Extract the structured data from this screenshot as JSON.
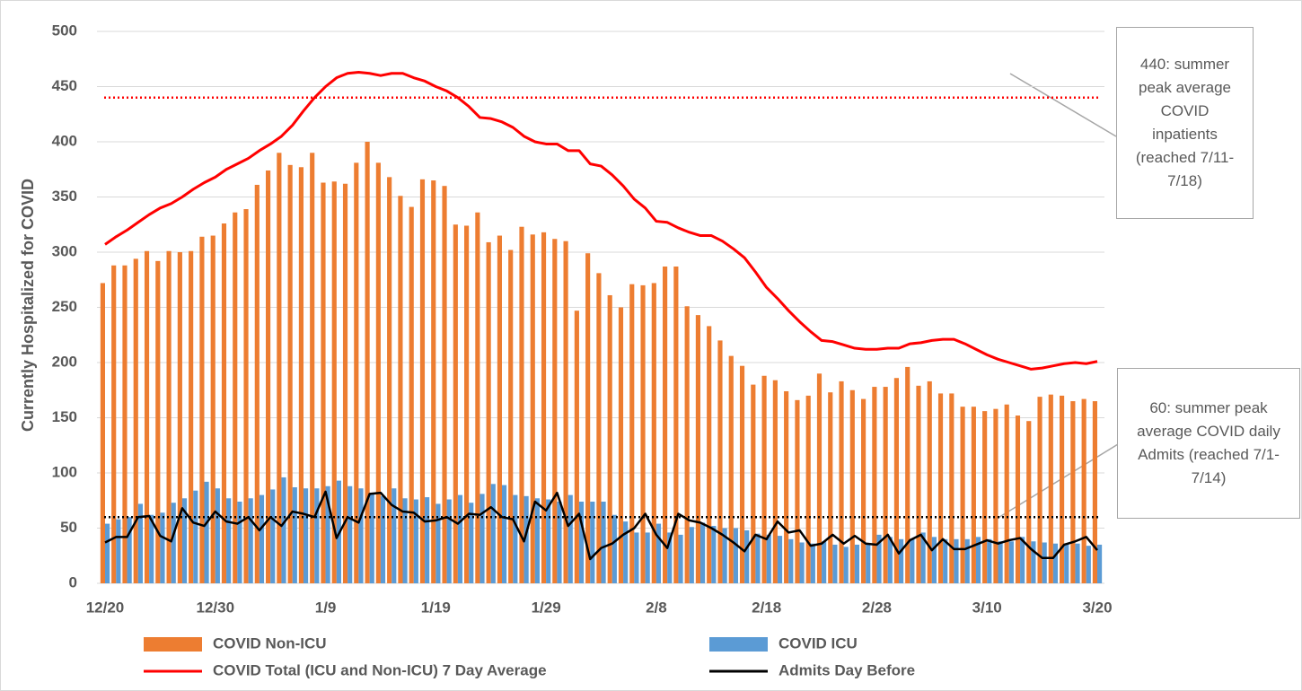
{
  "chart_data": {
    "type": "bar",
    "y_label": "Currently Hospitalized for COVID",
    "categories": [
      "12/20",
      null,
      null,
      null,
      null,
      null,
      null,
      null,
      null,
      null,
      "12/30",
      null,
      null,
      null,
      null,
      null,
      null,
      null,
      null,
      null,
      "1/9",
      null,
      null,
      null,
      null,
      null,
      null,
      null,
      null,
      null,
      "1/19",
      null,
      null,
      null,
      null,
      null,
      null,
      null,
      null,
      null,
      "1/29",
      null,
      null,
      null,
      null,
      null,
      null,
      null,
      null,
      null,
      "2/8",
      null,
      null,
      null,
      null,
      null,
      null,
      null,
      null,
      null,
      "2/18",
      null,
      null,
      null,
      null,
      null,
      null,
      null,
      null,
      null,
      "2/28",
      null,
      null,
      null,
      null,
      null,
      null,
      null,
      null,
      null,
      "3/10",
      null,
      null,
      null,
      null,
      null,
      null,
      null,
      null,
      null,
      "3/20"
    ],
    "series": [
      {
        "name": "COVID Non-ICU",
        "type": "bar",
        "color": "#ed7d31",
        "values": [
          272,
          288,
          288,
          294,
          301,
          292,
          301,
          300,
          301,
          314,
          315,
          326,
          336,
          339,
          361,
          374,
          390,
          379,
          377,
          390,
          363,
          364,
          362,
          381,
          400,
          381,
          368,
          351,
          341,
          366,
          365,
          360,
          325,
          324,
          336,
          309,
          315,
          302,
          323,
          316,
          318,
          312,
          310,
          247,
          299,
          281,
          261,
          250,
          271,
          270,
          272,
          287,
          287,
          251,
          243,
          233,
          220,
          206,
          197,
          180,
          188,
          184,
          174,
          166,
          170,
          190,
          173,
          183,
          175,
          167,
          178,
          178,
          186,
          196,
          179,
          183,
          172,
          172,
          160,
          160,
          156,
          158,
          162,
          152,
          147,
          169,
          171,
          170,
          165,
          167,
          165
        ]
      },
      {
        "name": "COVID ICU",
        "type": "bar",
        "color": "#5b9bd5",
        "values": [
          54,
          58,
          60,
          72,
          62,
          64,
          73,
          77,
          84,
          92,
          86,
          77,
          74,
          77,
          80,
          85,
          96,
          87,
          86,
          86,
          88,
          93,
          88,
          86,
          81,
          79,
          86,
          77,
          76,
          78,
          72,
          76,
          80,
          73,
          81,
          90,
          89,
          80,
          79,
          77,
          76,
          74,
          80,
          74,
          74,
          74,
          62,
          56,
          46,
          46,
          54,
          46,
          44,
          51,
          55,
          52,
          50,
          50,
          48,
          45,
          44,
          43,
          40,
          37,
          36,
          38,
          35,
          33,
          35,
          35,
          44,
          42,
          40,
          40,
          46,
          42,
          40,
          40,
          40,
          42,
          40,
          38,
          38,
          42,
          38,
          37,
          36,
          36,
          36,
          34,
          35
        ]
      },
      {
        "name": "COVID Total (ICU and Non-ICU) 7 Day Average",
        "type": "line",
        "color": "#ff0000",
        "values": [
          307,
          314,
          320,
          327,
          334,
          340,
          344,
          350,
          357,
          363,
          368,
          375,
          380,
          385,
          392,
          398,
          405,
          415,
          428,
          440,
          450,
          458,
          462,
          463,
          462,
          460,
          462,
          462,
          458,
          455,
          450,
          446,
          440,
          432,
          422,
          421,
          418,
          413,
          405,
          400,
          398,
          398,
          392,
          392,
          380,
          378,
          370,
          360,
          348,
          340,
          328,
          327,
          322,
          318,
          315,
          315,
          310,
          303,
          295,
          282,
          268,
          258,
          247,
          237,
          228,
          220,
          219,
          216,
          213,
          212,
          212,
          213,
          213,
          217,
          218,
          220,
          221,
          221,
          217,
          212,
          207,
          203,
          200,
          197,
          194,
          195,
          197,
          199,
          200,
          199,
          201
        ]
      },
      {
        "name": "Admits Day Before",
        "type": "line",
        "color": "#000000",
        "values": [
          37,
          42,
          42,
          60,
          61,
          43,
          38,
          68,
          55,
          52,
          65,
          56,
          54,
          60,
          48,
          60,
          52,
          65,
          63,
          60,
          83,
          41,
          60,
          55,
          81,
          82,
          71,
          65,
          64,
          56,
          57,
          60,
          54,
          63,
          62,
          69,
          60,
          58,
          38,
          74,
          66,
          82,
          52,
          63,
          22,
          32,
          36,
          44,
          50,
          63,
          44,
          32,
          63,
          57,
          55,
          50,
          44,
          37,
          29,
          44,
          40,
          56,
          46,
          48,
          34,
          36,
          44,
          36,
          43,
          36,
          35,
          44,
          27,
          39,
          44,
          30,
          40,
          31,
          31,
          35,
          39,
          36,
          39,
          41,
          31,
          23,
          23,
          35,
          38,
          42,
          30
        ]
      }
    ],
    "reference_lines": [
      {
        "value": 440,
        "color": "#ff0000",
        "label": "440: summer peak average COVID inpatients (reached 7/11-7/18)"
      },
      {
        "value": 60,
        "color": "#000000",
        "label": "60: summer peak average COVID daily Admits (reached 7/1-7/14)"
      }
    ],
    "ylim": [
      0,
      500
    ],
    "yticks": [
      0,
      50,
      100,
      150,
      200,
      250,
      300,
      350,
      400,
      450,
      500
    ],
    "grid": true
  }
}
